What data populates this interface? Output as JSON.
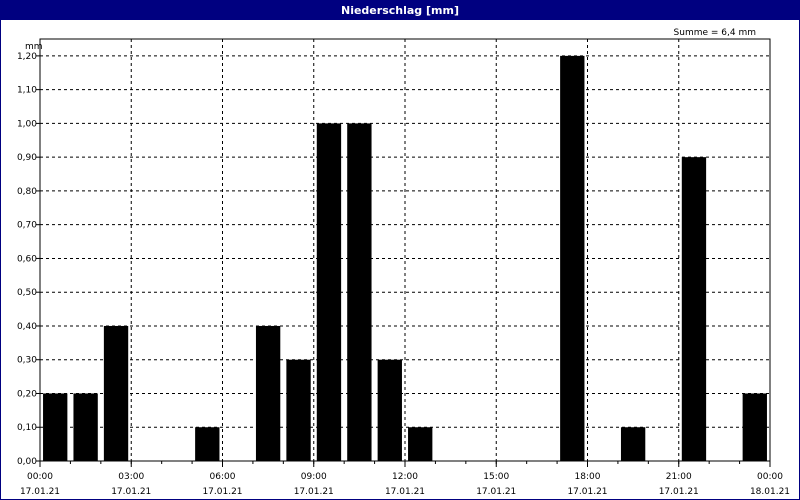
{
  "window": {
    "title": "Niederschlag [mm]"
  },
  "chart_data": {
    "type": "bar",
    "title": "Niederschlag [mm]",
    "ylabel": "mm",
    "annotation": "Summe = 6,4 mm",
    "ylim": [
      0,
      1.25
    ],
    "xlim_hours": [
      0,
      24
    ],
    "grid": true,
    "y_ticks": [
      {
        "value": 0.0,
        "label": "0,00"
      },
      {
        "value": 0.1,
        "label": "0,10"
      },
      {
        "value": 0.2,
        "label": "0,20"
      },
      {
        "value": 0.3,
        "label": "0,30"
      },
      {
        "value": 0.4,
        "label": "0,40"
      },
      {
        "value": 0.5,
        "label": "0,50"
      },
      {
        "value": 0.6,
        "label": "0,60"
      },
      {
        "value": 0.7,
        "label": "0,70"
      },
      {
        "value": 0.8,
        "label": "0,80"
      },
      {
        "value": 0.9,
        "label": "0,90"
      },
      {
        "value": 1.0,
        "label": "1,00"
      },
      {
        "value": 1.1,
        "label": "1,10"
      },
      {
        "value": 1.2,
        "label": "1,20"
      }
    ],
    "x_ticks": [
      {
        "hour": 0,
        "time": "00:00",
        "date": "17.01.21"
      },
      {
        "hour": 3,
        "time": "03:00",
        "date": "17.01.21"
      },
      {
        "hour": 6,
        "time": "06:00",
        "date": "17.01.21"
      },
      {
        "hour": 9,
        "time": "09:00",
        "date": "17.01.21"
      },
      {
        "hour": 12,
        "time": "12:00",
        "date": "17.01.21"
      },
      {
        "hour": 15,
        "time": "15:00",
        "date": "17.01.21"
      },
      {
        "hour": 18,
        "time": "18:00",
        "date": "17.01.21"
      },
      {
        "hour": 21,
        "time": "21:00",
        "date": "17.01.21"
      },
      {
        "hour": 24,
        "time": "00:00",
        "date": "18.01.21"
      }
    ],
    "bars": [
      {
        "hour": 0,
        "value": 0.2
      },
      {
        "hour": 1,
        "value": 0.2
      },
      {
        "hour": 2,
        "value": 0.4
      },
      {
        "hour": 5,
        "value": 0.1
      },
      {
        "hour": 7,
        "value": 0.4
      },
      {
        "hour": 8,
        "value": 0.3
      },
      {
        "hour": 9,
        "value": 1.0
      },
      {
        "hour": 10,
        "value": 1.0
      },
      {
        "hour": 11,
        "value": 0.3
      },
      {
        "hour": 12,
        "value": 0.1
      },
      {
        "hour": 17,
        "value": 1.2
      },
      {
        "hour": 19,
        "value": 0.1
      },
      {
        "hour": 21,
        "value": 0.9
      },
      {
        "hour": 23,
        "value": 0.2
      }
    ],
    "colors": {
      "bar": "#000000",
      "titlebar": "#000080",
      "grid": "#000000"
    }
  }
}
